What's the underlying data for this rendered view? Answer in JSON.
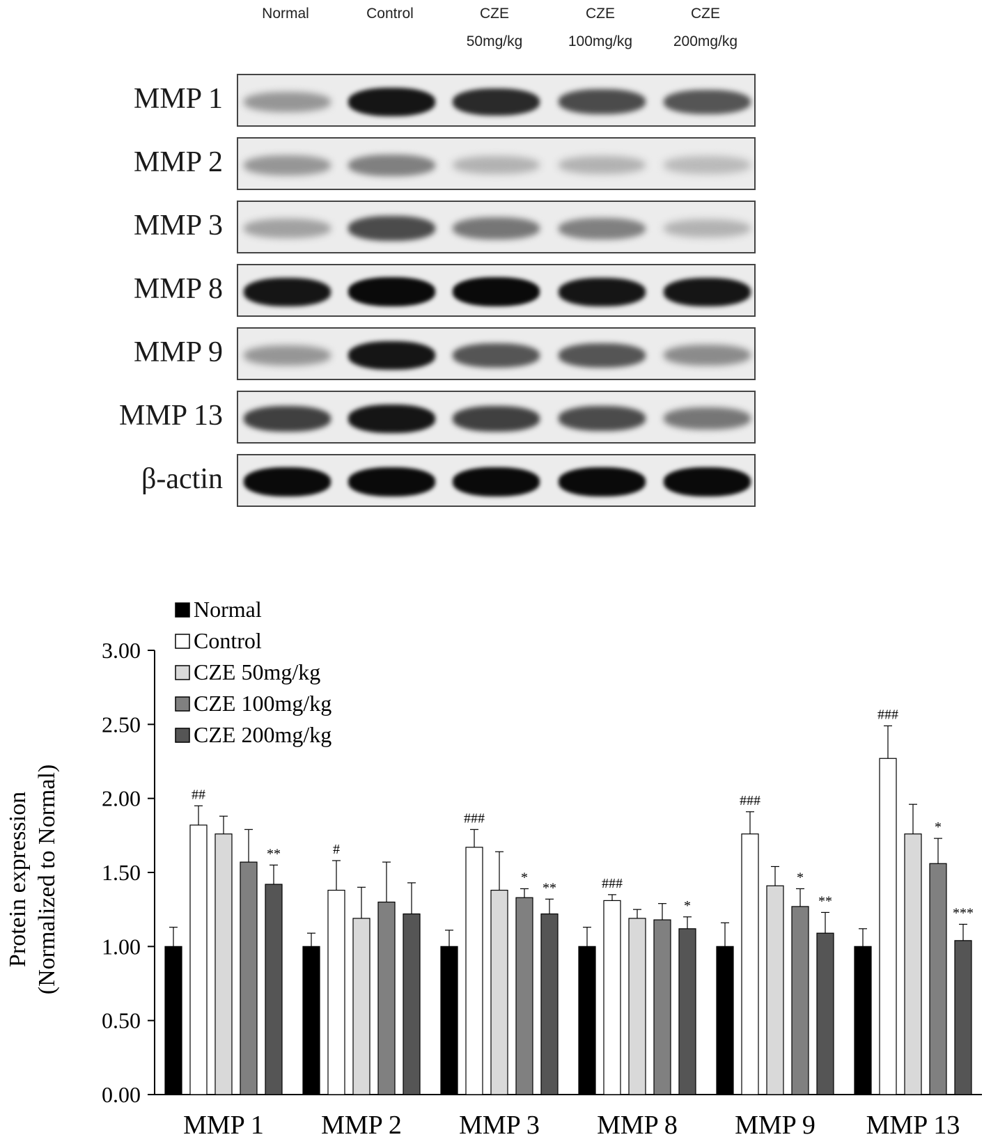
{
  "blot": {
    "lanes": [
      {
        "line1": "Normal",
        "line2": ""
      },
      {
        "line1": "Control",
        "line2": ""
      },
      {
        "line1": "CZE",
        "line2": "50mg/kg"
      },
      {
        "line1": "CZE",
        "line2": "100mg/kg"
      },
      {
        "line1": "CZE",
        "line2": "200mg/kg"
      }
    ],
    "rows": [
      {
        "label": "MMP 1",
        "intensity": [
          0.35,
          0.95,
          0.85,
          0.7,
          0.65
        ]
      },
      {
        "label": "MMP 2",
        "intensity": [
          0.35,
          0.45,
          0.22,
          0.22,
          0.18
        ]
      },
      {
        "label": "MMP 3",
        "intensity": [
          0.3,
          0.7,
          0.5,
          0.45,
          0.22
        ]
      },
      {
        "label": "MMP 8",
        "intensity": [
          0.95,
          1.0,
          1.0,
          0.95,
          0.95
        ]
      },
      {
        "label": "MMP 9",
        "intensity": [
          0.35,
          0.95,
          0.65,
          0.65,
          0.4
        ]
      },
      {
        "label": "MMP 13",
        "intensity": [
          0.75,
          0.95,
          0.75,
          0.7,
          0.5
        ]
      },
      {
        "label": "β-actin",
        "intensity": [
          1.0,
          1.0,
          1.0,
          1.0,
          1.0
        ]
      }
    ]
  },
  "chart_data": {
    "type": "bar",
    "ylabel": "Protein expression",
    "ylabel2": "(Normalized to Normal)",
    "ylim": [
      0,
      3
    ],
    "yticks": [
      "0.00",
      "0.50",
      "1.00",
      "1.50",
      "2.00",
      "2.50",
      "3.00"
    ],
    "categories": [
      "MMP 1",
      "MMP 2",
      "MMP 3",
      "MMP 8",
      "MMP 9",
      "MMP 13"
    ],
    "legend_position": "top-left",
    "series": [
      {
        "name": "Normal",
        "color": "#000000",
        "values": [
          1.0,
          1.0,
          1.0,
          1.0,
          1.0,
          1.0
        ],
        "errors": [
          0.13,
          0.09,
          0.11,
          0.13,
          0.16,
          0.12
        ]
      },
      {
        "name": "Control",
        "color": "#ffffff",
        "values": [
          1.82,
          1.38,
          1.67,
          1.31,
          1.76,
          2.27
        ],
        "errors": [
          0.13,
          0.2,
          0.12,
          0.04,
          0.15,
          0.22
        ]
      },
      {
        "name": "CZE 50mg/kg",
        "color": "#d9d9d9",
        "values": [
          1.76,
          1.19,
          1.38,
          1.19,
          1.41,
          1.76
        ],
        "errors": [
          0.12,
          0.21,
          0.26,
          0.06,
          0.13,
          0.2
        ]
      },
      {
        "name": "CZE 100mg/kg",
        "color": "#808080",
        "values": [
          1.57,
          1.3,
          1.33,
          1.18,
          1.27,
          1.56
        ],
        "errors": [
          0.22,
          0.27,
          0.06,
          0.11,
          0.12,
          0.17
        ]
      },
      {
        "name": "CZE 200mg/kg",
        "color": "#555555",
        "values": [
          1.42,
          1.22,
          1.22,
          1.12,
          1.09,
          1.04
        ],
        "errors": [
          0.13,
          0.21,
          0.1,
          0.08,
          0.14,
          0.11
        ]
      }
    ],
    "annotations": [
      {
        "category": 0,
        "series": 1,
        "text": "##"
      },
      {
        "category": 0,
        "series": 4,
        "text": "**"
      },
      {
        "category": 1,
        "series": 1,
        "text": "#"
      },
      {
        "category": 2,
        "series": 1,
        "text": "###"
      },
      {
        "category": 2,
        "series": 3,
        "text": "*"
      },
      {
        "category": 2,
        "series": 4,
        "text": "**"
      },
      {
        "category": 3,
        "series": 1,
        "text": "###"
      },
      {
        "category": 3,
        "series": 4,
        "text": "*"
      },
      {
        "category": 4,
        "series": 1,
        "text": "###"
      },
      {
        "category": 4,
        "series": 3,
        "text": "*"
      },
      {
        "category": 4,
        "series": 4,
        "text": "**"
      },
      {
        "category": 5,
        "series": 1,
        "text": "###"
      },
      {
        "category": 5,
        "series": 3,
        "text": "*"
      },
      {
        "category": 5,
        "series": 4,
        "text": "***"
      }
    ]
  }
}
